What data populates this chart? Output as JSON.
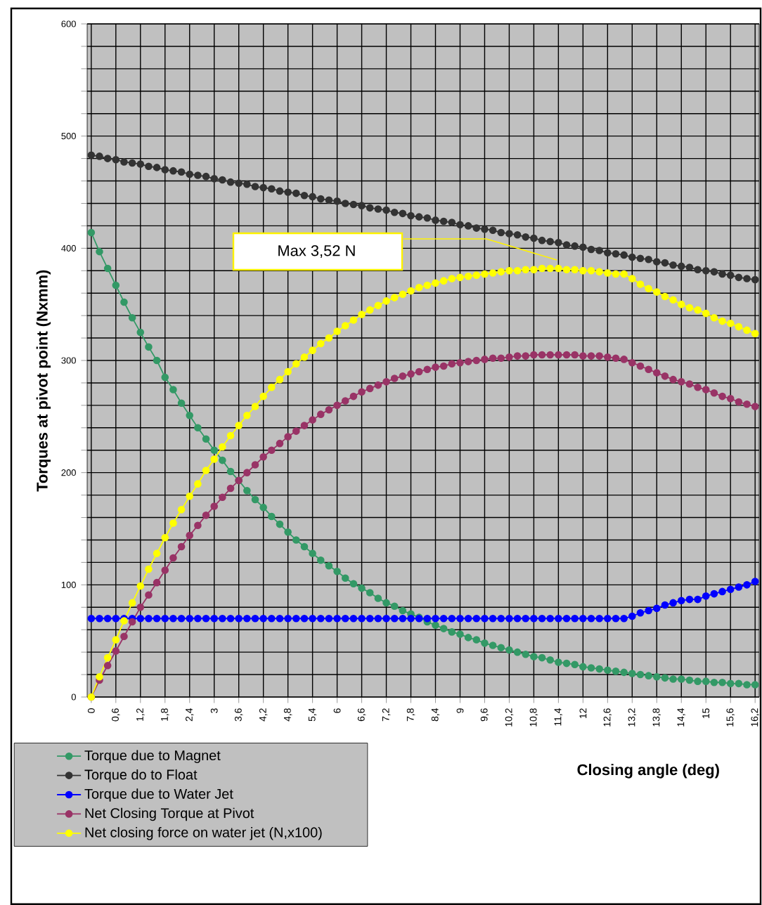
{
  "chart_data": {
    "type": "line",
    "xlabel": "Closing angle (deg)",
    "ylabel": "Torques at pivot point (Nxmm)",
    "x": [
      0,
      0.2,
      0.4,
      0.6,
      0.8,
      1,
      1.2,
      1.4,
      1.6,
      1.8,
      2,
      2.2,
      2.4,
      2.6,
      2.8,
      3,
      3.2,
      3.4,
      3.6,
      3.8,
      4,
      4.2,
      4.4,
      4.6,
      4.8,
      5,
      5.2,
      5.4,
      5.6,
      5.8,
      6,
      6.2,
      6.4,
      6.6,
      6.8,
      7,
      7.2,
      7.4,
      7.6,
      7.8,
      8,
      8.2,
      8.4,
      8.6,
      8.8,
      9,
      9.2,
      9.4,
      9.6,
      9.8,
      10,
      10.2,
      10.4,
      10.6,
      10.8,
      11,
      11.2,
      11.4,
      11.6,
      11.8,
      12,
      12.2,
      12.4,
      12.6,
      12.8,
      13,
      13.2,
      13.4,
      13.6,
      13.8,
      14,
      14.2,
      14.4,
      14.6,
      14.8,
      15,
      15.2,
      15.4,
      15.6,
      15.8,
      16,
      16.2
    ],
    "xlim": [
      -0.1,
      16.3
    ],
    "xticks": [
      0,
      {
        "value": 0.6,
        "label": "0,6"
      },
      {
        "value": 1.2,
        "label": "1,2"
      },
      {
        "value": 1.8,
        "label": "1,8"
      },
      {
        "value": 2.4,
        "label": "2,4"
      },
      3,
      {
        "value": 3.6,
        "label": "3,6"
      },
      {
        "value": 4.2,
        "label": "4,2"
      },
      {
        "value": 4.8,
        "label": "4,8"
      },
      {
        "value": 5.4,
        "label": "5,4"
      },
      6,
      {
        "value": 6.6,
        "label": "6,6"
      },
      {
        "value": 7.2,
        "label": "7,2"
      },
      {
        "value": 7.8,
        "label": "7,8"
      },
      {
        "value": 8.4,
        "label": "8,4"
      },
      9,
      {
        "value": 9.6,
        "label": "9,6"
      },
      {
        "value": 10.2,
        "label": "10,2"
      },
      {
        "value": 10.8,
        "label": "10,8"
      },
      {
        "value": 11.4,
        "label": "11,4"
      },
      12,
      {
        "value": 12.6,
        "label": "12,6"
      },
      {
        "value": 13.2,
        "label": "13,2"
      },
      {
        "value": 13.8,
        "label": "13,8"
      },
      {
        "value": 14.4,
        "label": "14,4"
      },
      15,
      {
        "value": 15.6,
        "label": "15,6"
      },
      {
        "value": 16.2,
        "label": "16,2"
      }
    ],
    "ylim": [
      0,
      600
    ],
    "yticks": [
      0,
      {
        "value": 20,
        "label": null
      },
      {
        "value": 40,
        "label": null
      },
      {
        "value": 60,
        "label": null
      },
      {
        "value": 80,
        "label": null
      },
      100,
      {
        "value": 120,
        "label": null
      },
      {
        "value": 140,
        "label": null
      },
      {
        "value": 160,
        "label": null
      },
      {
        "value": 180,
        "label": null
      },
      200,
      {
        "value": 220,
        "label": null
      },
      {
        "value": 240,
        "label": null
      },
      {
        "value": 260,
        "label": null
      },
      {
        "value": 280,
        "label": null
      },
      300,
      {
        "value": 320,
        "label": null
      },
      {
        "value": 340,
        "label": null
      },
      {
        "value": 360,
        "label": null
      },
      {
        "value": 380,
        "label": null
      },
      400,
      {
        "value": 420,
        "label": null
      },
      {
        "value": 440,
        "label": null
      },
      {
        "value": 460,
        "label": null
      },
      {
        "value": 480,
        "label": null
      },
      500,
      {
        "value": 520,
        "label": null
      },
      {
        "value": 540,
        "label": null
      },
      {
        "value": 560,
        "label": null
      },
      {
        "value": 580,
        "label": null
      },
      600
    ],
    "grid": true,
    "legend": "bottom left",
    "marker": "circle",
    "line_style": "solid",
    "annotations": [
      "Max 3,52 N"
    ],
    "series": [
      {
        "name": "Torque due to Magnet",
        "color": "#339966",
        "values": [
          414,
          397,
          382,
          367,
          352,
          338,
          325,
          312,
          300,
          285,
          274,
          262,
          251,
          240,
          230,
          220,
          211,
          201,
          193,
          184,
          176,
          169,
          161,
          154,
          147,
          140,
          134,
          128,
          122,
          117,
          112,
          106,
          101,
          97,
          93,
          88,
          84,
          81,
          77,
          74,
          71,
          67,
          64,
          61,
          58,
          56,
          53,
          51,
          48,
          46,
          44,
          42,
          40,
          38,
          36,
          35,
          33,
          31,
          30,
          29,
          27,
          26,
          25,
          24,
          23,
          22,
          21,
          20,
          19,
          18,
          17,
          16,
          16,
          15,
          14,
          14,
          13,
          13,
          12,
          12,
          11,
          11
        ]
      },
      {
        "name": "Torque do to Float",
        "color": "#333333",
        "values": [
          483,
          482,
          480,
          479,
          477,
          476,
          475,
          473,
          472,
          470,
          469,
          468,
          466,
          465,
          464,
          462,
          461,
          459,
          458,
          457,
          455,
          454,
          453,
          451,
          450,
          449,
          447,
          446,
          444,
          443,
          442,
          440,
          439,
          438,
          436,
          435,
          434,
          432,
          431,
          429,
          428,
          427,
          425,
          424,
          423,
          421,
          420,
          418,
          417,
          416,
          414,
          413,
          412,
          410,
          409,
          407,
          406,
          405,
          403,
          402,
          401,
          399,
          398,
          396,
          395,
          394,
          392,
          391,
          390,
          388,
          387,
          385,
          384,
          383,
          381,
          380,
          379,
          377,
          376,
          374,
          373,
          372
        ]
      },
      {
        "name": "Torque due to Water Jet",
        "color": "#0000ff",
        "values": [
          70,
          70,
          70,
          70,
          70,
          70,
          70,
          70,
          70,
          70,
          70,
          70,
          70,
          70,
          70,
          70,
          70,
          70,
          70,
          70,
          70,
          70,
          70,
          70,
          70,
          70,
          70,
          70,
          70,
          70,
          70,
          70,
          70,
          70,
          70,
          70,
          70,
          70,
          70,
          70,
          70,
          70,
          70,
          70,
          70,
          70,
          70,
          70,
          70,
          70,
          70,
          70,
          70,
          70,
          70,
          70,
          70,
          70,
          70,
          70,
          70,
          70,
          70,
          70,
          70,
          70,
          72,
          75,
          77,
          79,
          82,
          84,
          86,
          87,
          87,
          90,
          92,
          94,
          96,
          98,
          100,
          103
        ]
      },
      {
        "name": "Net Closing Torque at Pivot",
        "color": "#993366",
        "values": [
          0,
          15,
          28,
          41,
          54,
          67,
          80,
          91,
          102,
          113,
          124,
          134,
          144,
          153,
          162,
          170,
          178,
          186,
          193,
          200,
          207,
          214,
          220,
          226,
          232,
          237,
          242,
          247,
          252,
          256,
          260,
          264,
          268,
          272,
          275,
          278,
          281,
          284,
          286,
          288,
          290,
          292,
          294,
          295,
          297,
          298,
          299,
          300,
          301,
          302,
          302,
          303,
          304,
          304,
          305,
          305,
          305,
          305,
          305,
          305,
          304,
          304,
          304,
          303,
          302,
          301,
          298,
          295,
          292,
          289,
          286,
          283,
          281,
          279,
          276,
          274,
          271,
          268,
          266,
          263,
          261,
          259
        ]
      },
      {
        "name": "Net closing force on water jet (N,x100)",
        "color": "#ffff00",
        "values": [
          0,
          18,
          35,
          51,
          68,
          84,
          99,
          114,
          128,
          142,
          155,
          167,
          179,
          190,
          202,
          212,
          223,
          233,
          242,
          251,
          259,
          268,
          276,
          283,
          290,
          297,
          303,
          309,
          315,
          320,
          326,
          331,
          336,
          341,
          345,
          349,
          353,
          356,
          359,
          362,
          365,
          367,
          369,
          371,
          373,
          374,
          375,
          376,
          377,
          378,
          379,
          380,
          380,
          381,
          381,
          382,
          382,
          382,
          381,
          381,
          380,
          380,
          379,
          378,
          377,
          377,
          373,
          368,
          364,
          361,
          357,
          354,
          350,
          347,
          345,
          342,
          338,
          335,
          333,
          330,
          327,
          324
        ]
      }
    ]
  }
}
